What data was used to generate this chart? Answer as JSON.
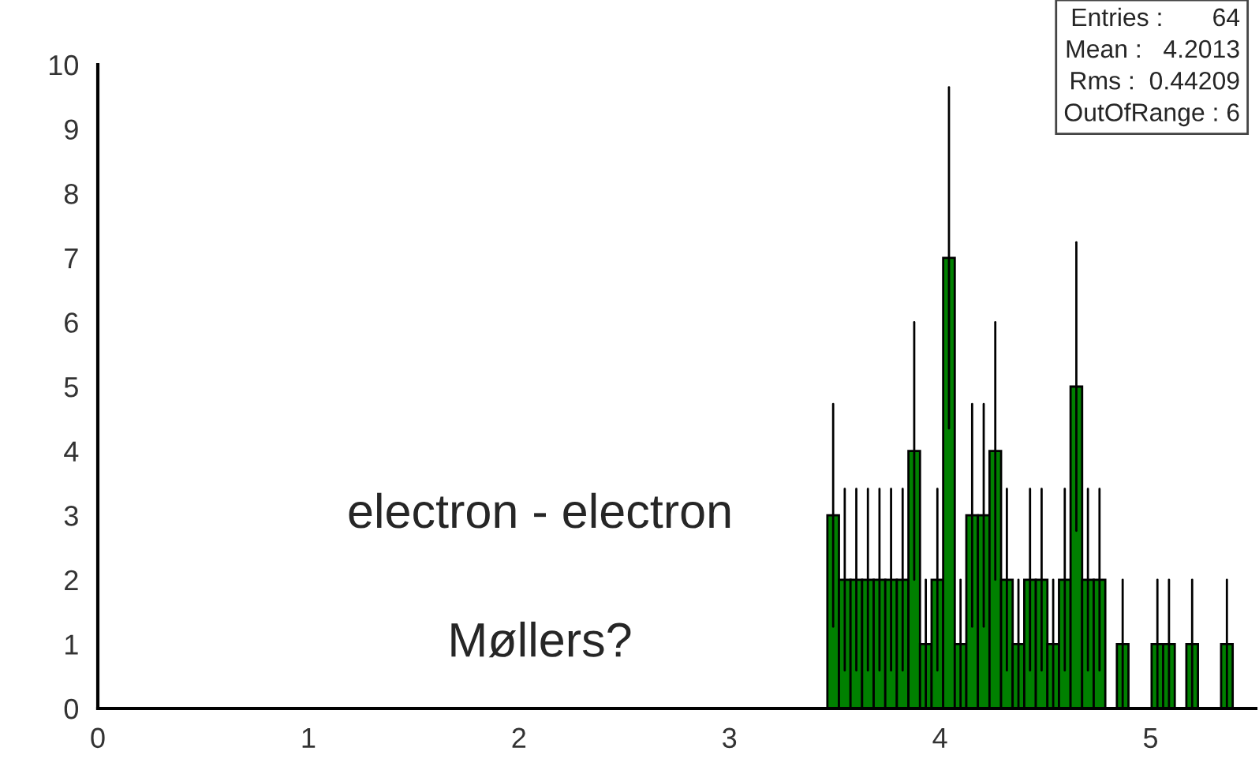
{
  "chart_data": {
    "type": "histogram",
    "bins": [
      3.465,
      3.52,
      3.575,
      3.63,
      3.685,
      3.74,
      3.795,
      3.85,
      3.905,
      3.96,
      4.015,
      4.07,
      4.125,
      4.18,
      4.235,
      4.29,
      4.345,
      4.4,
      4.455,
      4.51,
      4.565,
      4.62,
      4.675,
      4.73,
      4.785,
      4.84,
      4.895,
      4.95,
      5.005,
      5.06,
      5.115,
      5.17,
      5.225,
      5.28,
      5.335,
      5.39
    ],
    "values": [
      3,
      2,
      2,
      2,
      2,
      2,
      2,
      4,
      1,
      2,
      7,
      1,
      3,
      3,
      4,
      2,
      1,
      2,
      2,
      1,
      2,
      5,
      2,
      2,
      0,
      1,
      0,
      0,
      1,
      1,
      0,
      1,
      0,
      0,
      1
    ],
    "errors": [
      1.73,
      1.41,
      1.41,
      1.41,
      1.41,
      1.41,
      1.41,
      2,
      1,
      1.41,
      2.65,
      1,
      1.73,
      1.73,
      2,
      1.41,
      1,
      1.41,
      1.41,
      1,
      1.41,
      2.24,
      1.41,
      1.41,
      null,
      1,
      null,
      null,
      1,
      1,
      null,
      1,
      null,
      null,
      1
    ],
    "color": "#008000",
    "xlim": [
      0,
      5.5
    ],
    "xticks": [
      0,
      1,
      2,
      3,
      4,
      5
    ],
    "ylim": [
      0,
      10
    ],
    "yticks": [
      0,
      1,
      2,
      3,
      4,
      5,
      6,
      7,
      8,
      9,
      10
    ],
    "grid": false,
    "legend": false,
    "annotations": [
      "Entries :       64",
      "Mean :   4.2013",
      "Rms :  0.44209",
      "OutOfRange : 6",
      "electron - electron",
      "Møllers?"
    ]
  }
}
